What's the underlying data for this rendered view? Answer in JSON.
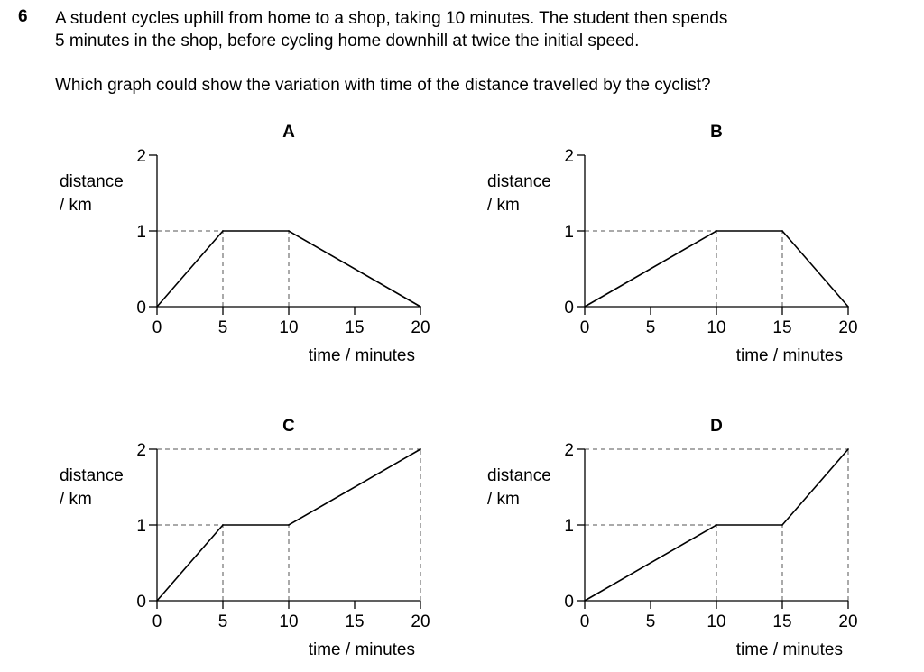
{
  "question": {
    "number": "6",
    "stem_line1": "A student cycles uphill from home to a shop, taking 10 minutes. The student then spends",
    "stem_line2": "5 minutes in the shop, before cycling home downhill at twice the initial speed.",
    "prompt": "Which graph could show the variation with time of the distance travelled by the cyclist?"
  },
  "axis": {
    "y_label_line1": "distance",
    "y_label_line2": "/ km",
    "x_label": "time / minutes",
    "x_ticks": [
      "0",
      "5",
      "10",
      "15",
      "20"
    ],
    "y_ticks": [
      "0",
      "1",
      "2"
    ]
  },
  "chart_data": [
    {
      "type": "line",
      "label": "A",
      "x": [
        0,
        5,
        10,
        20
      ],
      "y": [
        0,
        1,
        1,
        0
      ],
      "xlabel": "time / minutes",
      "ylabel": "distance / km",
      "xlim": [
        0,
        20
      ],
      "ylim": [
        0,
        2
      ],
      "guides": [
        {
          "x": 5,
          "y": 1
        },
        {
          "x": 10,
          "y": 1
        }
      ]
    },
    {
      "type": "line",
      "label": "B",
      "x": [
        0,
        10,
        15,
        20
      ],
      "y": [
        0,
        1,
        1,
        0
      ],
      "xlabel": "time / minutes",
      "ylabel": "distance / km",
      "xlim": [
        0,
        20
      ],
      "ylim": [
        0,
        2
      ],
      "guides": [
        {
          "x": 10,
          "y": 1
        },
        {
          "x": 15,
          "y": 1
        }
      ]
    },
    {
      "type": "line",
      "label": "C",
      "x": [
        0,
        5,
        10,
        20
      ],
      "y": [
        0,
        1,
        1,
        2
      ],
      "xlabel": "time / minutes",
      "ylabel": "distance / km",
      "xlim": [
        0,
        20
      ],
      "ylim": [
        0,
        2
      ],
      "guides": [
        {
          "x": 5,
          "y": 1
        },
        {
          "x": 10,
          "y": 1
        },
        {
          "x": 20,
          "y": 2
        }
      ]
    },
    {
      "type": "line",
      "label": "D",
      "x": [
        0,
        10,
        15,
        20
      ],
      "y": [
        0,
        1,
        1,
        2
      ],
      "xlabel": "time / minutes",
      "ylabel": "distance / km",
      "xlim": [
        0,
        20
      ],
      "ylim": [
        0,
        2
      ],
      "guides": [
        {
          "x": 10,
          "y": 1
        },
        {
          "x": 15,
          "y": 1
        },
        {
          "x": 20,
          "y": 2
        }
      ],
      "y_guides": [
        2
      ]
    }
  ]
}
